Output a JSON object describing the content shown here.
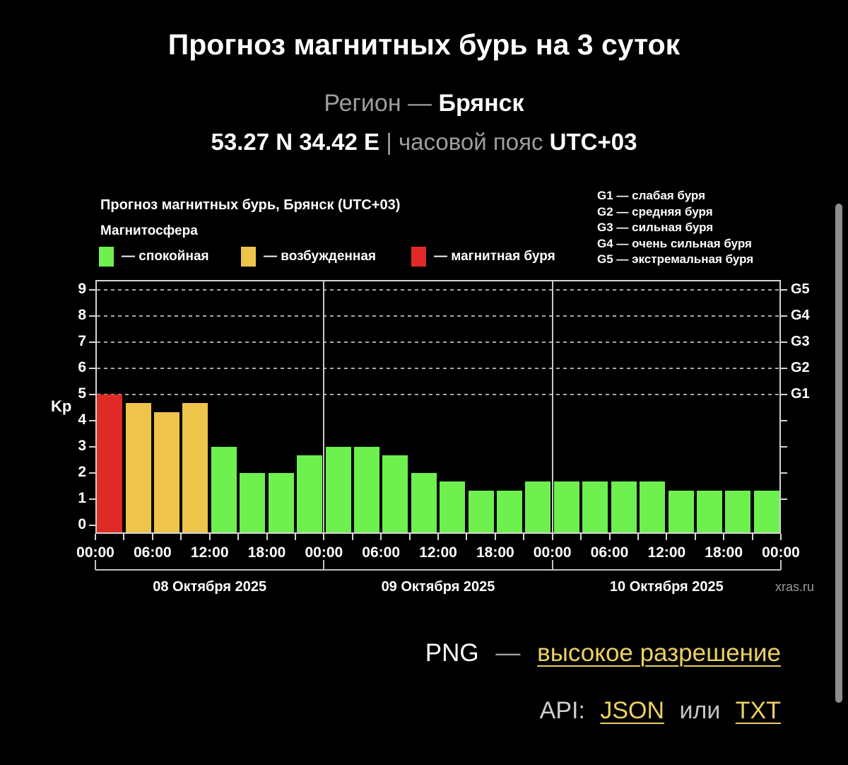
{
  "header": {
    "title": "Прогноз магнитных бурь на 3 суток",
    "region_label": "Регион",
    "region_dash": "—",
    "region_value": "Брянск",
    "coords": "53.27 N 34.42 E",
    "pipe": "|",
    "tz_label": "часовой пояс",
    "tz_value": "UTC+03"
  },
  "chart": {
    "title": "Прогноз магнитных бурь, Брянск (UTC+03)",
    "magnetosphere_label": "Магнитосфера",
    "legend": [
      {
        "label": "— спокойная",
        "meaning": "quiet",
        "color": "#6EF04E"
      },
      {
        "label": "— возбужденная",
        "meaning": "excited",
        "color": "#EEC44A"
      },
      {
        "label": "— магнитная буря",
        "meaning": "storm",
        "color": "#E02A26"
      }
    ],
    "g_scale": [
      "G1 — слабая буря",
      "G2 — средняя буря",
      "G3 — сильная буря",
      "G4 — очень сильная буря",
      "G5 — экстремальная буря"
    ],
    "watermark": "xras.ru"
  },
  "chart_data": {
    "type": "bar",
    "ylabel": "Kp",
    "ylim": [
      0,
      9
    ],
    "yticks": [
      0,
      1,
      2,
      3,
      4,
      5,
      6,
      7,
      8,
      9
    ],
    "grid_levels": [
      5,
      6,
      7,
      8,
      9
    ],
    "right_axis": [
      {
        "kp": 5,
        "label": "G1"
      },
      {
        "kp": 6,
        "label": "G2"
      },
      {
        "kp": 7,
        "label": "G3"
      },
      {
        "kp": 8,
        "label": "G4"
      },
      {
        "kp": 9,
        "label": "G5"
      }
    ],
    "time_ticks": [
      "00:00",
      "06:00",
      "12:00",
      "18:00",
      "00:00",
      "06:00",
      "12:00",
      "18:00",
      "00:00",
      "06:00",
      "12:00",
      "18:00",
      "00:00"
    ],
    "days": [
      {
        "date": "08 Октября 2025",
        "kp_3h": [
          5,
          4.67,
          4.33,
          4.67,
          3,
          2,
          2,
          2.67
        ]
      },
      {
        "date": "09 Октября 2025",
        "kp_3h": [
          3,
          3,
          2.67,
          2,
          1.67,
          1.33,
          1.33,
          1.67
        ]
      },
      {
        "date": "10 Октября 2025",
        "kp_3h": [
          1.67,
          1.67,
          1.67,
          1.67,
          1.33,
          1.33,
          1.33,
          1.33
        ]
      }
    ],
    "color_thresholds": {
      "storm_min_kp": 5,
      "excited_min_kp": 4
    },
    "colors": {
      "quiet": "#6EF04E",
      "excited": "#EEC44A",
      "storm": "#E02A26"
    },
    "legend_position": "top",
    "grid": "dashed horizontal at G-levels only"
  },
  "footer": {
    "png_label": "PNG",
    "dash": "—",
    "png_link": "высокое разрешение",
    "api_label": "API:",
    "json_link": "JSON",
    "or_label": "или",
    "txt_link": "TXT",
    "link_color": "#EDD064"
  }
}
